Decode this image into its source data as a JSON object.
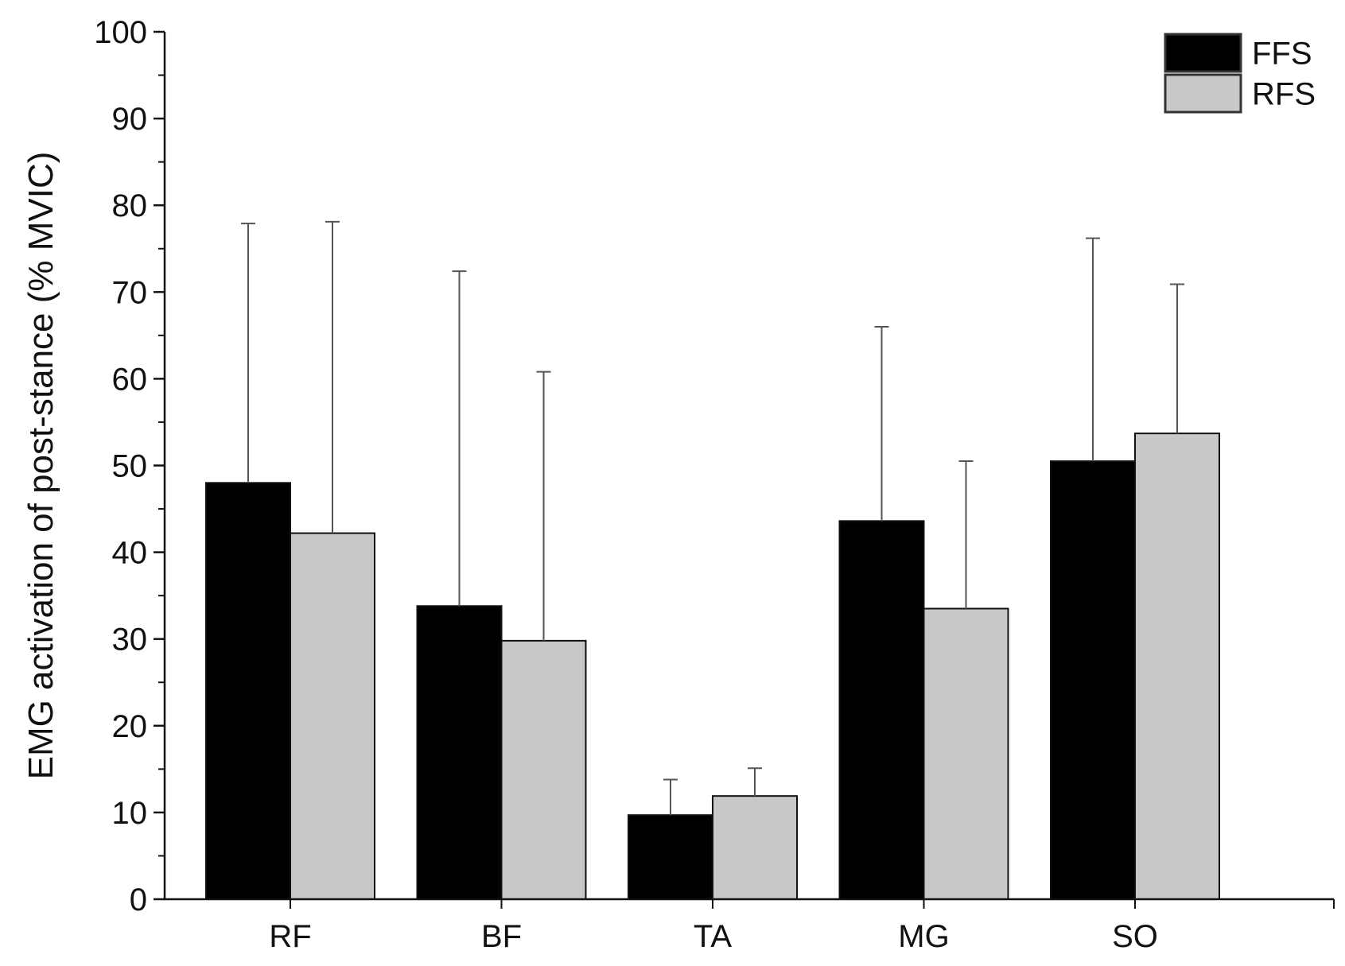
{
  "chart_data": {
    "type": "bar",
    "title": "",
    "xlabel": "",
    "ylabel": "EMG activation of post-stance (% MVIC)",
    "ylim": [
      0,
      100
    ],
    "y_major_ticks": [
      0,
      10,
      20,
      30,
      40,
      50,
      60,
      70,
      80,
      90,
      100
    ],
    "y_minor_step": 5,
    "categories": [
      "RF",
      "BF",
      "TA",
      "MG",
      "SO"
    ],
    "series": [
      {
        "name": "FFS",
        "color": "#000000",
        "values": [
          48.0,
          33.8,
          9.7,
          43.6,
          50.5
        ],
        "errors": [
          29.9,
          38.6,
          4.1,
          22.4,
          25.7
        ]
      },
      {
        "name": "RFS",
        "color": "#c8c8c8",
        "values": [
          42.2,
          29.8,
          11.9,
          33.5,
          53.7
        ],
        "errors": [
          35.9,
          31.0,
          3.2,
          17.0,
          17.2
        ]
      }
    ],
    "legend_position": "top-right",
    "grid": false
  }
}
